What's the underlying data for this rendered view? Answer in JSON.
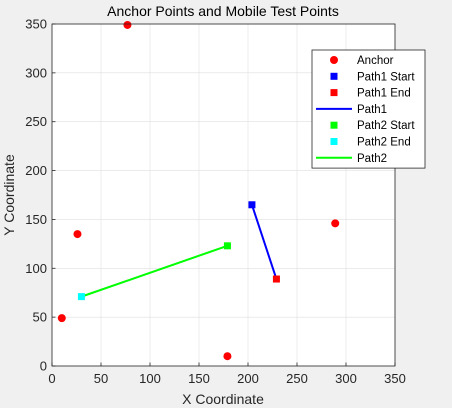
{
  "chart_data": {
    "type": "scatter",
    "title": "Anchor Points and Mobile Test Points",
    "xlabel": "X Coordinate",
    "ylabel": "Y Coordinate",
    "xlim": [
      0,
      350
    ],
    "ylim": [
      0,
      350
    ],
    "xticks": [
      0,
      50,
      100,
      150,
      200,
      250,
      300,
      350
    ],
    "yticks": [
      0,
      50,
      100,
      150,
      200,
      250,
      300,
      350
    ],
    "grid": true,
    "legend_position": "top-right",
    "series": [
      {
        "name": "Anchor",
        "kind": "marker",
        "marker": "circle",
        "color": "#ff0000",
        "points": [
          [
            10,
            49
          ],
          [
            26,
            135
          ],
          [
            77,
            349
          ],
          [
            179,
            10
          ],
          [
            289,
            146
          ]
        ]
      },
      {
        "name": "Path1 Start",
        "kind": "marker",
        "marker": "square",
        "color": "#0000ff",
        "points": [
          [
            204,
            165
          ]
        ]
      },
      {
        "name": "Path1 End",
        "kind": "marker",
        "marker": "square",
        "color": "#ff0000",
        "points": [
          [
            229,
            89
          ]
        ]
      },
      {
        "name": "Path1",
        "kind": "line",
        "color": "#0000ff",
        "points": [
          [
            204,
            165
          ],
          [
            229,
            89
          ]
        ]
      },
      {
        "name": "Path2 Start",
        "kind": "marker",
        "marker": "square",
        "color": "#00ff00",
        "points": [
          [
            179,
            123
          ]
        ]
      },
      {
        "name": "Path2 End",
        "kind": "marker",
        "marker": "square",
        "color": "#00ffff",
        "points": [
          [
            30,
            71
          ]
        ]
      },
      {
        "name": "Path2",
        "kind": "line",
        "color": "#00ff00",
        "points": [
          [
            30,
            71
          ],
          [
            179,
            123
          ]
        ]
      }
    ]
  }
}
